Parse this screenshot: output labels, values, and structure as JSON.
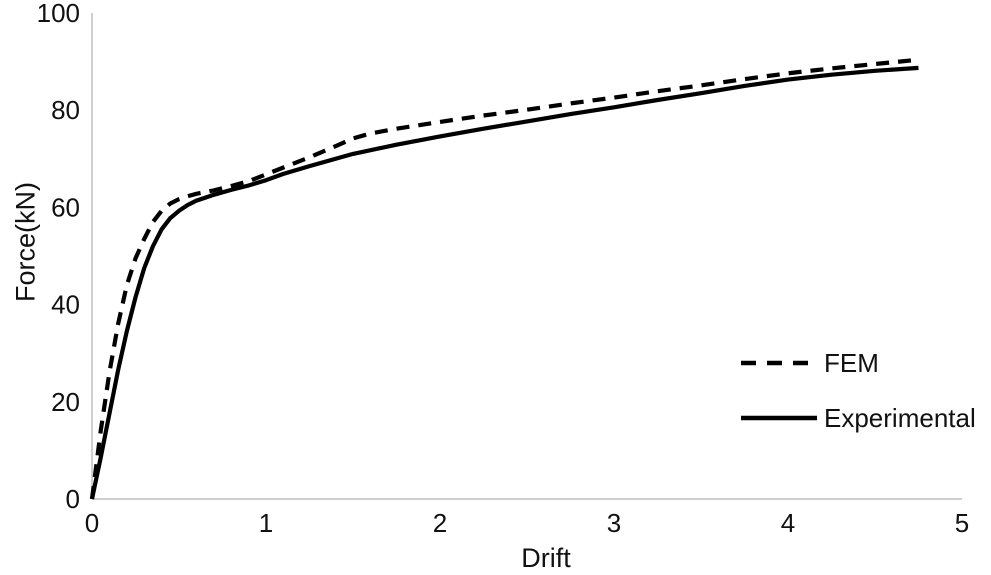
{
  "figure": {
    "background": "#ffffff"
  },
  "chart_data": {
    "type": "line",
    "title": "",
    "xlabel": "Drift",
    "ylabel": "Force(kN)",
    "xlim": [
      0,
      5
    ],
    "ylim": [
      0,
      100
    ],
    "x_ticks": [
      0,
      1,
      2,
      3,
      4,
      5
    ],
    "y_ticks": [
      0,
      20,
      40,
      60,
      80,
      100
    ],
    "grid": false,
    "legend": {
      "position": "right-middle",
      "entries": [
        "FEM",
        "Experimental"
      ]
    },
    "colors": {
      "series": "#000000",
      "axis_line": "#bfbfbf",
      "text": "#111111"
    },
    "series": [
      {
        "name": "FEM",
        "line_style": "dashed",
        "points": [
          [
            0,
            0
          ],
          [
            0.05,
            14
          ],
          [
            0.1,
            26
          ],
          [
            0.15,
            36
          ],
          [
            0.2,
            44
          ],
          [
            0.25,
            49.5
          ],
          [
            0.3,
            53.5
          ],
          [
            0.35,
            57
          ],
          [
            0.4,
            59.3
          ],
          [
            0.45,
            60.8
          ],
          [
            0.5,
            61.7
          ],
          [
            0.55,
            62.3
          ],
          [
            0.6,
            62.8
          ],
          [
            0.7,
            63.5
          ],
          [
            0.8,
            64.4
          ],
          [
            0.9,
            65.4
          ],
          [
            1.0,
            66.8
          ],
          [
            1.1,
            68.2
          ],
          [
            1.25,
            70.3
          ],
          [
            1.4,
            72.6
          ],
          [
            1.5,
            74.2
          ],
          [
            1.6,
            75.2
          ],
          [
            1.75,
            76.2
          ],
          [
            2.0,
            77.6
          ],
          [
            2.25,
            78.9
          ],
          [
            2.5,
            80.1
          ],
          [
            2.75,
            81.4
          ],
          [
            3.0,
            82.6
          ],
          [
            3.25,
            83.9
          ],
          [
            3.5,
            85.1
          ],
          [
            3.75,
            86.4
          ],
          [
            4.0,
            87.6
          ],
          [
            4.25,
            88.6
          ],
          [
            4.5,
            89.5
          ],
          [
            4.75,
            90.4
          ]
        ]
      },
      {
        "name": "Experimental",
        "line_style": "solid",
        "points": [
          [
            0,
            0
          ],
          [
            0.05,
            8.5
          ],
          [
            0.1,
            17.5
          ],
          [
            0.15,
            26.5
          ],
          [
            0.2,
            34.5
          ],
          [
            0.25,
            41.5
          ],
          [
            0.3,
            47.5
          ],
          [
            0.35,
            52
          ],
          [
            0.4,
            55.5
          ],
          [
            0.45,
            57.8
          ],
          [
            0.5,
            59.3
          ],
          [
            0.55,
            60.5
          ],
          [
            0.6,
            61.4
          ],
          [
            0.65,
            62
          ],
          [
            0.7,
            62.6
          ],
          [
            0.8,
            63.6
          ],
          [
            0.9,
            64.5
          ],
          [
            1.0,
            65.6
          ],
          [
            1.1,
            66.9
          ],
          [
            1.25,
            68.5
          ],
          [
            1.5,
            71
          ],
          [
            1.75,
            72.9
          ],
          [
            2.0,
            74.6
          ],
          [
            2.25,
            76.2
          ],
          [
            2.5,
            77.7
          ],
          [
            2.75,
            79.2
          ],
          [
            3.0,
            80.6
          ],
          [
            3.25,
            82.1
          ],
          [
            3.5,
            83.5
          ],
          [
            3.75,
            85
          ],
          [
            4.0,
            86.3
          ],
          [
            4.25,
            87.3
          ],
          [
            4.5,
            88.1
          ],
          [
            4.75,
            88.7
          ]
        ]
      }
    ]
  }
}
